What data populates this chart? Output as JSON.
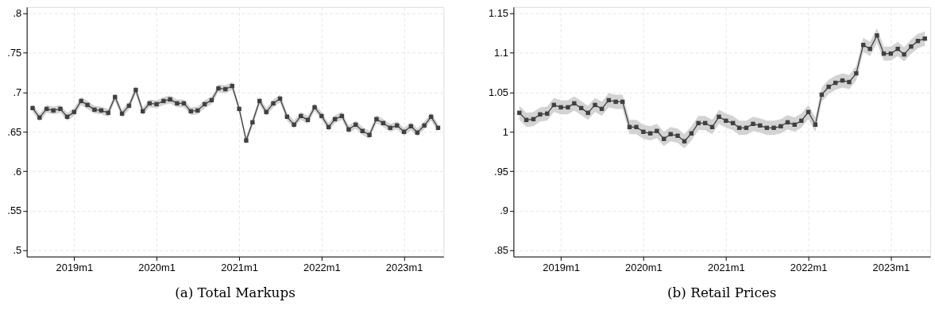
{
  "chart_data": [
    {
      "type": "line",
      "title": "(a) Total Markups",
      "marker": "square",
      "line_style": "solid",
      "grid": true,
      "x": [
        "2018-07",
        "2018-08",
        "2018-09",
        "2018-10",
        "2018-11",
        "2018-12",
        "2019-01",
        "2019-02",
        "2019-03",
        "2019-04",
        "2019-05",
        "2019-06",
        "2019-07",
        "2019-08",
        "2019-09",
        "2019-10",
        "2019-11",
        "2019-12",
        "2020-01",
        "2020-02",
        "2020-03",
        "2020-04",
        "2020-05",
        "2020-06",
        "2020-07",
        "2020-08",
        "2020-09",
        "2020-10",
        "2020-11",
        "2020-12",
        "2021-01",
        "2021-02",
        "2021-03",
        "2021-04",
        "2021-05",
        "2021-06",
        "2021-07",
        "2021-08",
        "2021-09",
        "2021-10",
        "2021-11",
        "2021-12",
        "2022-01",
        "2022-02",
        "2022-03",
        "2022-04",
        "2022-05",
        "2022-06",
        "2022-07",
        "2022-08",
        "2022-09",
        "2022-10",
        "2022-11",
        "2022-12",
        "2023-01",
        "2023-02",
        "2023-03",
        "2023-04",
        "2023-05",
        "2023-06"
      ],
      "series": [
        {
          "color": "#404040",
          "values": [
            0.68,
            0.668,
            0.679,
            0.677,
            0.679,
            0.669,
            0.675,
            0.689,
            0.684,
            0.678,
            0.677,
            0.674,
            0.694,
            0.673,
            0.683,
            0.703,
            0.676,
            0.686,
            0.685,
            0.689,
            0.691,
            0.686,
            0.686,
            0.676,
            0.677,
            0.685,
            0.69,
            0.705,
            0.704,
            0.708,
            0.679,
            0.639,
            0.662,
            0.689,
            0.675,
            0.686,
            0.692,
            0.669,
            0.659,
            0.67,
            0.665,
            0.681,
            0.67,
            0.656,
            0.666,
            0.67,
            0.653,
            0.659,
            0.651,
            0.646,
            0.666,
            0.661,
            0.655,
            0.658,
            0.65,
            0.657,
            0.649,
            0.658,
            0.669,
            0.655
          ],
          "lower": [
            0.675,
            0.663,
            0.674,
            0.672,
            0.674,
            0.664,
            0.67,
            0.684,
            0.679,
            0.673,
            0.672,
            0.669,
            0.689,
            0.668,
            0.678,
            0.698,
            0.671,
            0.681,
            0.68,
            0.684,
            0.686,
            0.681,
            0.681,
            0.671,
            0.672,
            0.68,
            0.685,
            0.7,
            0.699,
            0.703,
            0.674,
            0.634,
            0.657,
            0.684,
            0.67,
            0.681,
            0.687,
            0.664,
            0.654,
            0.665,
            0.66,
            0.676,
            0.665,
            0.651,
            0.661,
            0.665,
            0.648,
            0.654,
            0.646,
            0.641,
            0.661,
            0.656,
            0.65,
            0.653,
            0.645,
            0.652,
            0.644,
            0.653,
            0.664,
            0.65
          ],
          "upper": [
            0.685,
            0.673,
            0.684,
            0.682,
            0.684,
            0.674,
            0.68,
            0.694,
            0.689,
            0.683,
            0.682,
            0.679,
            0.699,
            0.678,
            0.688,
            0.708,
            0.681,
            0.691,
            0.69,
            0.694,
            0.696,
            0.691,
            0.691,
            0.681,
            0.682,
            0.69,
            0.695,
            0.71,
            0.709,
            0.713,
            0.684,
            0.644,
            0.667,
            0.694,
            0.68,
            0.691,
            0.697,
            0.674,
            0.664,
            0.675,
            0.67,
            0.686,
            0.675,
            0.661,
            0.671,
            0.675,
            0.658,
            0.664,
            0.656,
            0.651,
            0.671,
            0.666,
            0.66,
            0.663,
            0.655,
            0.662,
            0.654,
            0.663,
            0.674,
            0.66
          ]
        }
      ],
      "xlim": [
        "2018-06-05",
        "2023-06-25"
      ],
      "xticks": [
        {
          "value": "2019-01",
          "label": "2019m1"
        },
        {
          "value": "2020-01",
          "label": "2020m1"
        },
        {
          "value": "2021-01",
          "label": "2021m1"
        },
        {
          "value": "2022-01",
          "label": "2022m1"
        },
        {
          "value": "2023-01",
          "label": "2023m1"
        }
      ],
      "ylim": [
        0.492,
        0.808
      ],
      "yticks": [
        {
          "value": 0.5,
          "label": ".5"
        },
        {
          "value": 0.55,
          "label": ".55"
        },
        {
          "value": 0.6,
          "label": ".6"
        },
        {
          "value": 0.65,
          "label": ".65"
        },
        {
          "value": 0.7,
          "label": ".7"
        },
        {
          "value": 0.75,
          "label": ".75"
        },
        {
          "value": 0.8,
          "label": ".8"
        }
      ]
    },
    {
      "type": "line",
      "title": "(b) Retail Prices",
      "marker": "square",
      "line_style": "solid",
      "grid": true,
      "x": [
        "2018-07",
        "2018-08",
        "2018-09",
        "2018-10",
        "2018-11",
        "2018-12",
        "2019-01",
        "2019-02",
        "2019-03",
        "2019-04",
        "2019-05",
        "2019-06",
        "2019-07",
        "2019-08",
        "2019-09",
        "2019-10",
        "2019-11",
        "2019-12",
        "2020-01",
        "2020-02",
        "2020-03",
        "2020-04",
        "2020-05",
        "2020-06",
        "2020-07",
        "2020-08",
        "2020-09",
        "2020-10",
        "2020-11",
        "2020-12",
        "2021-01",
        "2021-02",
        "2021-03",
        "2021-04",
        "2021-05",
        "2021-06",
        "2021-07",
        "2021-08",
        "2021-09",
        "2021-10",
        "2021-11",
        "2021-12",
        "2022-01",
        "2022-02",
        "2022-03",
        "2022-04",
        "2022-05",
        "2022-06",
        "2022-07",
        "2022-08",
        "2022-09",
        "2022-10",
        "2022-11",
        "2022-12",
        "2023-01",
        "2023-02",
        "2023-03",
        "2023-04",
        "2023-05",
        "2023-06"
      ],
      "series": [
        {
          "color": "#404040",
          "values": [
            1.024,
            1.015,
            1.016,
            1.022,
            1.023,
            1.034,
            1.031,
            1.031,
            1.036,
            1.03,
            1.024,
            1.034,
            1.029,
            1.04,
            1.038,
            1.038,
            1.006,
            1.006,
            1.0,
            0.998,
            1.001,
            0.991,
            0.997,
            0.995,
            0.988,
            0.998,
            1.011,
            1.011,
            1.006,
            1.019,
            1.014,
            1.011,
            1.005,
            1.005,
            1.01,
            1.008,
            1.005,
            1.005,
            1.007,
            1.012,
            1.009,
            1.014,
            1.025,
            1.009,
            1.047,
            1.057,
            1.062,
            1.065,
            1.063,
            1.074,
            1.11,
            1.105,
            1.122,
            1.099,
            1.099,
            1.105,
            1.098,
            1.108,
            1.115,
            1.118
          ],
          "lower": [
            1.015,
            1.006,
            1.007,
            1.013,
            1.014,
            1.025,
            1.022,
            1.022,
            1.027,
            1.021,
            1.015,
            1.025,
            1.02,
            1.031,
            1.029,
            1.029,
            0.997,
            0.997,
            0.991,
            0.989,
            0.992,
            0.982,
            0.988,
            0.986,
            0.979,
            0.989,
            1.002,
            1.002,
            0.997,
            1.01,
            1.005,
            1.002,
            0.996,
            0.996,
            1.001,
            0.999,
            0.996,
            0.996,
            0.998,
            1.003,
            1.0,
            1.005,
            1.016,
            1.0,
            1.038,
            1.048,
            1.053,
            1.056,
            1.054,
            1.065,
            1.101,
            1.096,
            1.113,
            1.09,
            1.09,
            1.096,
            1.089,
            1.099,
            1.106,
            1.109
          ],
          "upper": [
            1.033,
            1.024,
            1.025,
            1.031,
            1.032,
            1.043,
            1.04,
            1.04,
            1.045,
            1.039,
            1.033,
            1.043,
            1.038,
            1.049,
            1.047,
            1.047,
            1.015,
            1.015,
            1.009,
            1.007,
            1.01,
            1.0,
            1.006,
            1.004,
            0.997,
            1.007,
            1.02,
            1.02,
            1.015,
            1.028,
            1.023,
            1.02,
            1.014,
            1.014,
            1.019,
            1.017,
            1.014,
            1.014,
            1.016,
            1.021,
            1.018,
            1.023,
            1.034,
            1.018,
            1.056,
            1.066,
            1.071,
            1.074,
            1.072,
            1.083,
            1.119,
            1.114,
            1.131,
            1.108,
            1.108,
            1.114,
            1.107,
            1.117,
            1.124,
            1.127
          ]
        }
      ],
      "xlim": [
        "2018-06-05",
        "2023-06-25"
      ],
      "xticks": [
        {
          "value": "2019-01",
          "label": "2019m1"
        },
        {
          "value": "2020-01",
          "label": "2020m1"
        },
        {
          "value": "2021-01",
          "label": "2021m1"
        },
        {
          "value": "2022-01",
          "label": "2022m1"
        },
        {
          "value": "2023-01",
          "label": "2023m1"
        }
      ],
      "ylim": [
        0.842,
        1.158
      ],
      "yticks": [
        {
          "value": 0.85,
          "label": ".85"
        },
        {
          "value": 0.9,
          "label": ".9"
        },
        {
          "value": 0.95,
          "label": ".95"
        },
        {
          "value": 1,
          "label": "1"
        },
        {
          "value": 1.05,
          "label": "1.05"
        },
        {
          "value": 1.1,
          "label": "1.1"
        },
        {
          "value": 1.15,
          "label": "1.15"
        }
      ]
    }
  ]
}
